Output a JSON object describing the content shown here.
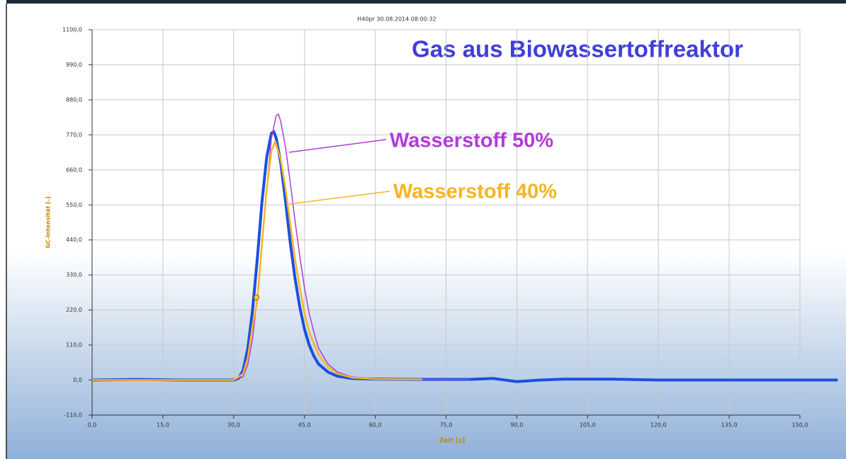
{
  "chart_data": {
    "type": "line",
    "title": "H40pr     30.08.2014 08:00:32",
    "annotation": "Gas aus Biowassertoffreaktor",
    "annotation_color": "#3f3fd8",
    "xlabel": "Zeit [s]",
    "ylabel": "GC-Intensität [-]",
    "xlim": [
      0,
      150
    ],
    "ylim": [
      -110,
      1100
    ],
    "grid": true,
    "xticks": [
      {
        "value": 0,
        "label": "0,0"
      },
      {
        "value": 15,
        "label": "15,0"
      },
      {
        "value": 30,
        "label": "30,0"
      },
      {
        "value": 45,
        "label": "45,0"
      },
      {
        "value": 60,
        "label": "60,0"
      },
      {
        "value": 75,
        "label": "75,0"
      },
      {
        "value": 90,
        "label": "90,0"
      },
      {
        "value": 105,
        "label": "105,0"
      },
      {
        "value": 120,
        "label": "120,0"
      },
      {
        "value": 135,
        "label": "135,0"
      },
      {
        "value": 150,
        "label": "150,0"
      }
    ],
    "yticks": [
      {
        "value": -110,
        "label": "-110,0"
      },
      {
        "value": 0,
        "label": "0,0"
      },
      {
        "value": 110,
        "label": "110,0"
      },
      {
        "value": 220,
        "label": "220,0"
      },
      {
        "value": 330,
        "label": "330,0"
      },
      {
        "value": 440,
        "label": "440,0"
      },
      {
        "value": 550,
        "label": "550,0"
      },
      {
        "value": 660,
        "label": "660,0"
      },
      {
        "value": 770,
        "label": "770,0"
      },
      {
        "value": 880,
        "label": "880,0"
      },
      {
        "value": 990,
        "label": "990,0"
      },
      {
        "value": 1100,
        "label": "1100,0"
      }
    ],
    "series": [
      {
        "color": "#1a4fe0",
        "line_width": 4,
        "x": [
          0,
          10,
          20,
          30,
          31,
          32,
          33,
          34,
          35,
          36,
          37,
          38,
          38.5,
          39,
          40,
          41,
          42,
          43,
          44,
          45,
          46,
          47,
          48,
          50,
          52,
          55,
          60,
          70,
          80,
          85,
          90,
          95,
          100,
          110,
          120,
          140,
          158
        ],
        "values": [
          0,
          2,
          0,
          0,
          5,
          30,
          100,
          220,
          380,
          560,
          700,
          775,
          780,
          760,
          680,
          560,
          430,
          320,
          230,
          160,
          110,
          75,
          50,
          25,
          12,
          5,
          3,
          2,
          2,
          5,
          -5,
          0,
          3,
          3,
          0,
          0,
          0
        ]
      },
      {
        "name": "Wasserstoff 50%",
        "color": "#b03cd8",
        "line_width": 1.5,
        "x": [
          0,
          30,
          32,
          33,
          34,
          35,
          36,
          37,
          38,
          39,
          39.5,
          40,
          41,
          42,
          43,
          44,
          45,
          46,
          47,
          48,
          50,
          52,
          55,
          60,
          70,
          80
        ],
        "values": [
          0,
          0,
          10,
          50,
          130,
          260,
          420,
          600,
          760,
          830,
          835,
          810,
          730,
          620,
          500,
          390,
          290,
          210,
          150,
          100,
          50,
          25,
          10,
          4,
          2,
          2
        ]
      },
      {
        "name": "Wasserstoff 40%",
        "color": "#f5b521",
        "line_width": 2.5,
        "x": [
          0,
          30,
          32,
          33,
          34,
          35,
          36,
          37,
          38,
          38.8,
          40,
          41,
          42,
          43,
          44,
          45,
          46,
          48,
          50,
          52,
          55,
          60,
          70
        ],
        "values": [
          0,
          0,
          20,
          70,
          170,
          250,
          430,
          600,
          720,
          750,
          690,
          600,
          490,
          380,
          290,
          210,
          150,
          80,
          40,
          20,
          8,
          3,
          2
        ]
      }
    ]
  }
}
